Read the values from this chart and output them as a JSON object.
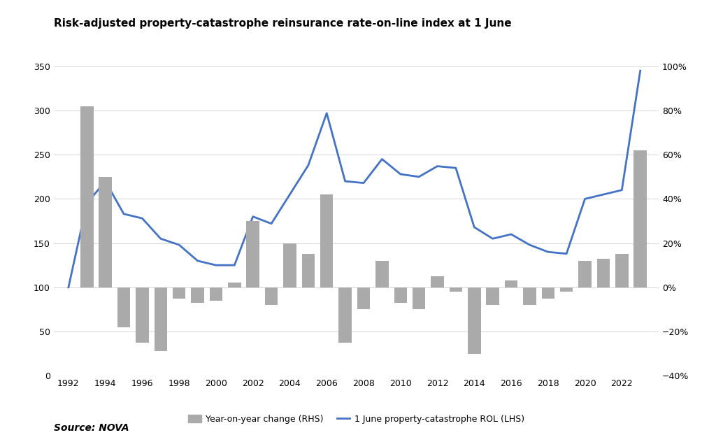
{
  "title": "Risk-adjusted property-catastrophe reinsurance rate-on-line index at 1 June",
  "source": "Source: NOVA",
  "years": [
    1992,
    1993,
    1994,
    1995,
    1996,
    1997,
    1998,
    1999,
    2000,
    2001,
    2002,
    2003,
    2004,
    2005,
    2006,
    2007,
    2008,
    2009,
    2010,
    2011,
    2012,
    2013,
    2014,
    2015,
    2016,
    2017,
    2018,
    2019,
    2020,
    2021,
    2022,
    2023
  ],
  "rol_lhs": [
    100,
    195,
    220,
    183,
    178,
    155,
    148,
    130,
    125,
    125,
    180,
    172,
    205,
    238,
    297,
    220,
    218,
    245,
    228,
    225,
    237,
    235,
    168,
    155,
    160,
    148,
    140,
    138,
    200,
    205,
    210,
    345
  ],
  "yoy_rhs": [
    0.0,
    0.82,
    0.5,
    -0.18,
    -0.25,
    -0.29,
    -0.05,
    -0.07,
    -0.06,
    0.02,
    0.3,
    -0.08,
    0.2,
    0.15,
    0.42,
    -0.25,
    -0.1,
    0.12,
    -0.07,
    -0.1,
    0.05,
    -0.02,
    -0.3,
    -0.08,
    0.03,
    -0.08,
    -0.05,
    -0.02,
    0.12,
    0.13,
    0.15,
    0.62
  ],
  "bar_color": "#aaaaaa",
  "line_color": "#4472c4",
  "lhs_ylim": [
    0,
    350
  ],
  "lhs_yticks": [
    0,
    50,
    100,
    150,
    200,
    250,
    300,
    350
  ],
  "rhs_ylim": [
    -0.4,
    1.0
  ],
  "rhs_yticks": [
    -0.4,
    -0.2,
    0.0,
    0.2,
    0.4,
    0.6,
    0.8,
    1.0
  ],
  "legend_bar": "Year-on-year change (RHS)",
  "legend_line": "1 June property-catastrophe ROL (LHS)",
  "background_color": "#ffffff",
  "grid_color": "#d0d0d0"
}
